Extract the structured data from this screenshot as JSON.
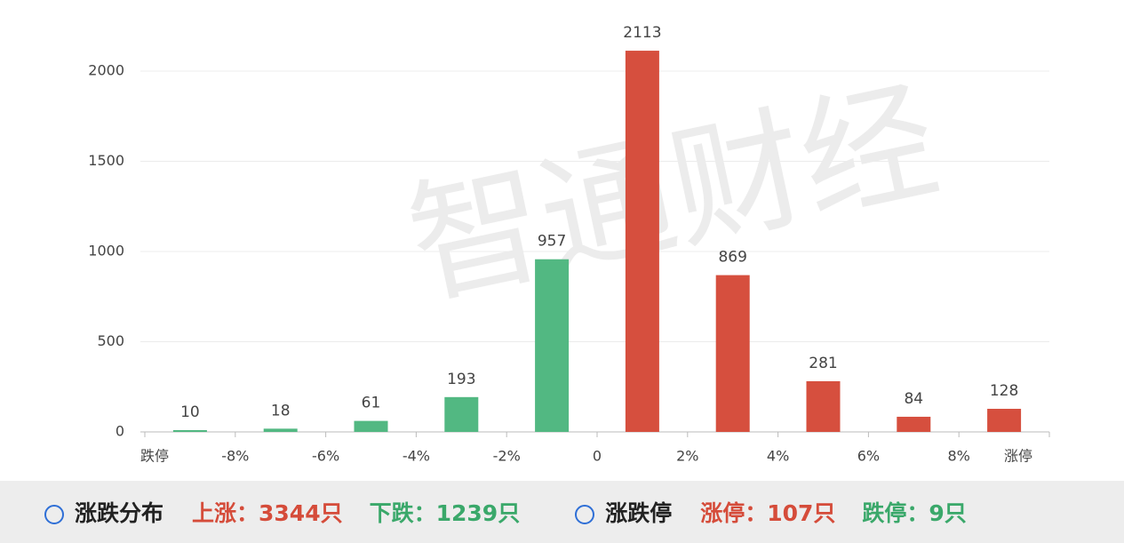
{
  "chart_data": {
    "type": "bar",
    "watermark": "智通财经",
    "x_tick_labels": [
      "跌停",
      "-8%",
      "-6%",
      "-4%",
      "-2%",
      "0",
      "2%",
      "4%",
      "6%",
      "8%",
      "涨停"
    ],
    "values": [
      10,
      18,
      61,
      193,
      957,
      2113,
      869,
      281,
      84,
      128
    ],
    "colors": [
      "#52b882",
      "#52b882",
      "#52b882",
      "#52b882",
      "#52b882",
      "#d64f3e",
      "#d64f3e",
      "#d64f3e",
      "#d64f3e",
      "#d64f3e"
    ],
    "ylim": [
      0,
      2200
    ],
    "yticks": [
      0,
      500,
      1000,
      1500,
      2000
    ],
    "grid": true
  },
  "footer": {
    "distribution": {
      "title": "涨跌分布",
      "up": "上涨：3344只",
      "down": "下跌：1239只"
    },
    "limits": {
      "title": "涨跌停",
      "up": "涨停：107只",
      "down": "跌停：9只"
    }
  }
}
